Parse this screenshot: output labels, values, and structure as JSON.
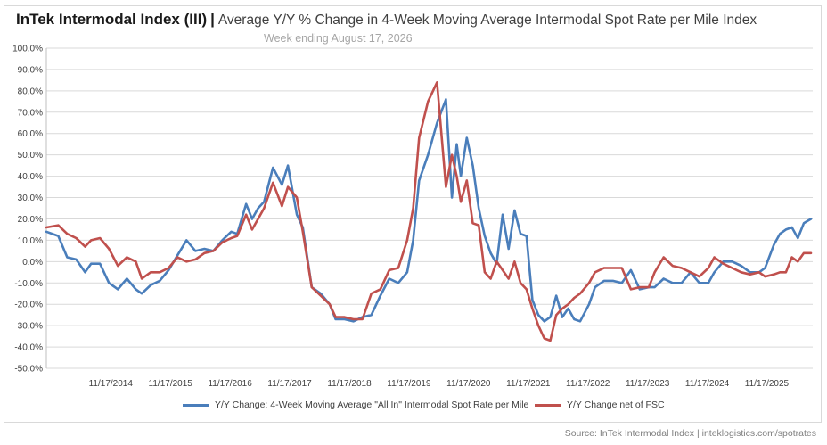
{
  "header": {
    "title": "InTek Intermodal Index (III)",
    "separator": "|",
    "subtitle": "Average Y/Y % Change in 4-Week Moving Average Intermodal Spot Rate per Mile Index",
    "week": "Week ending August 17, 2026"
  },
  "footer": {
    "source": "Source: InTek Intermodal Index | inteklogistics.com/spotrates"
  },
  "chart_data": {
    "type": "line",
    "ylim": [
      -50,
      100
    ],
    "y_ticks": [
      "100.0%",
      "90.0%",
      "80.0%",
      "70.0%",
      "60.0%",
      "50.0%",
      "40.0%",
      "30.0%",
      "20.0%",
      "10.0%",
      "0.0%",
      "-10.0%",
      "-20.0%",
      "-30.0%",
      "-40.0%",
      "-50.0%"
    ],
    "x_ticks": [
      "11/17/2014",
      "11/17/2015",
      "11/17/2016",
      "11/17/2017",
      "11/17/2018",
      "11/17/2019",
      "11/17/2020",
      "11/17/2021",
      "11/17/2022",
      "11/17/2023",
      "11/17/2024",
      "11/17/2025"
    ],
    "grid": "horizontal",
    "legend_position": "bottom",
    "series": [
      {
        "name": "Y/Y Change: 4-Week Moving Average \"All In\" Intermodal Spot Rate per Mile",
        "color": "#4a7ebb",
        "x": [
          2013.8,
          2014.0,
          2014.15,
          2014.3,
          2014.45,
          2014.55,
          2014.7,
          2014.85,
          2015.0,
          2015.15,
          2015.3,
          2015.4,
          2015.55,
          2015.7,
          2015.85,
          2016.0,
          2016.15,
          2016.3,
          2016.45,
          2016.6,
          2016.75,
          2016.9,
          2017.0,
          2017.15,
          2017.25,
          2017.35,
          2017.45,
          2017.6,
          2017.75,
          2017.85,
          2018.0,
          2018.1,
          2018.25,
          2018.4,
          2018.55,
          2018.65,
          2018.8,
          2018.95,
          2019.1,
          2019.25,
          2019.4,
          2019.55,
          2019.7,
          2019.85,
          2019.95,
          2020.05,
          2020.2,
          2020.35,
          2020.5,
          2020.6,
          2020.68,
          2020.75,
          2020.85,
          2020.95,
          2021.05,
          2021.15,
          2021.25,
          2021.35,
          2021.45,
          2021.55,
          2021.65,
          2021.75,
          2021.85,
          2021.95,
          2022.05,
          2022.15,
          2022.25,
          2022.35,
          2022.45,
          2022.55,
          2022.65,
          2022.75,
          2022.9,
          2023.0,
          2023.15,
          2023.3,
          2023.45,
          2023.6,
          2023.75,
          2023.9,
          2024.0,
          2024.15,
          2024.3,
          2024.45,
          2024.6,
          2024.75,
          2024.9,
          2025.0,
          2025.15,
          2025.3,
          2025.45,
          2025.6,
          2025.75,
          2025.85,
          2026.0,
          2026.1,
          2026.2,
          2026.3,
          2026.4,
          2026.5,
          2026.62
        ],
        "values": [
          14,
          12,
          2,
          1,
          -5,
          -1,
          -1,
          -10,
          -13,
          -8,
          -13,
          -15,
          -11,
          -9,
          -4,
          3,
          10,
          5,
          6,
          5,
          10,
          14,
          13,
          27,
          20,
          25,
          28,
          44,
          36,
          45,
          22,
          16,
          -12,
          -15,
          -20,
          -27,
          -27,
          -28,
          -26,
          -25,
          -16,
          -8,
          -10,
          -5,
          10,
          38,
          50,
          65,
          76,
          30,
          55,
          40,
          58,
          45,
          25,
          12,
          4,
          -1,
          22,
          6,
          24,
          13,
          12,
          -18,
          -25,
          -28,
          -26,
          -16,
          -26,
          -22,
          -27,
          -28,
          -20,
          -12,
          -9,
          -9,
          -10,
          -4,
          -13,
          -12,
          -12,
          -8,
          -10,
          -10,
          -5,
          -10,
          -10,
          -5,
          0,
          0,
          -2,
          -5,
          -5,
          -3,
          8,
          13,
          15,
          16,
          11,
          18,
          20
        ]
      },
      {
        "name": "Y/Y Change net of FSC",
        "color": "#c0504d",
        "x": [
          2013.8,
          2014.0,
          2014.15,
          2014.3,
          2014.45,
          2014.55,
          2014.7,
          2014.85,
          2015.0,
          2015.15,
          2015.3,
          2015.4,
          2015.55,
          2015.7,
          2015.85,
          2016.0,
          2016.15,
          2016.3,
          2016.45,
          2016.6,
          2016.75,
          2016.9,
          2017.0,
          2017.15,
          2017.25,
          2017.35,
          2017.45,
          2017.6,
          2017.75,
          2017.85,
          2018.0,
          2018.1,
          2018.25,
          2018.4,
          2018.55,
          2018.65,
          2018.8,
          2018.95,
          2019.1,
          2019.25,
          2019.4,
          2019.55,
          2019.7,
          2019.85,
          2019.95,
          2020.05,
          2020.2,
          2020.35,
          2020.5,
          2020.6,
          2020.68,
          2020.75,
          2020.85,
          2020.95,
          2021.05,
          2021.15,
          2021.25,
          2021.35,
          2021.45,
          2021.55,
          2021.65,
          2021.75,
          2021.85,
          2021.95,
          2022.05,
          2022.15,
          2022.25,
          2022.35,
          2022.45,
          2022.55,
          2022.65,
          2022.75,
          2022.9,
          2023.0,
          2023.15,
          2023.3,
          2023.45,
          2023.6,
          2023.75,
          2023.9,
          2024.0,
          2024.15,
          2024.3,
          2024.45,
          2024.6,
          2024.75,
          2024.9,
          2025.0,
          2025.15,
          2025.3,
          2025.45,
          2025.6,
          2025.75,
          2025.85,
          2026.0,
          2026.1,
          2026.2,
          2026.3,
          2026.4,
          2026.5,
          2026.62
        ],
        "values": [
          16,
          17,
          13,
          11,
          7,
          10,
          11,
          6,
          -2,
          2,
          0,
          -8,
          -5,
          -5,
          -3,
          2,
          0,
          1,
          4,
          5,
          9,
          11,
          12,
          22,
          15,
          20,
          25,
          37,
          26,
          35,
          30,
          14,
          -12,
          -16,
          -20,
          -26,
          -26,
          -27,
          -27,
          -15,
          -13,
          -4,
          -3,
          10,
          25,
          58,
          75,
          84,
          35,
          50,
          40,
          28,
          38,
          18,
          17,
          -5,
          -8,
          0,
          -4,
          -8,
          0,
          -10,
          -13,
          -22,
          -30,
          -36,
          -37,
          -25,
          -22,
          -20,
          -17,
          -15,
          -10,
          -5,
          -3,
          -3,
          -3,
          -13,
          -12,
          -12,
          -5,
          2,
          -2,
          -3,
          -5,
          -7,
          -3,
          2,
          -1,
          -3,
          -5,
          -6,
          -5,
          -7,
          -6,
          -5,
          -5,
          2,
          0,
          4,
          4
        ]
      }
    ]
  }
}
